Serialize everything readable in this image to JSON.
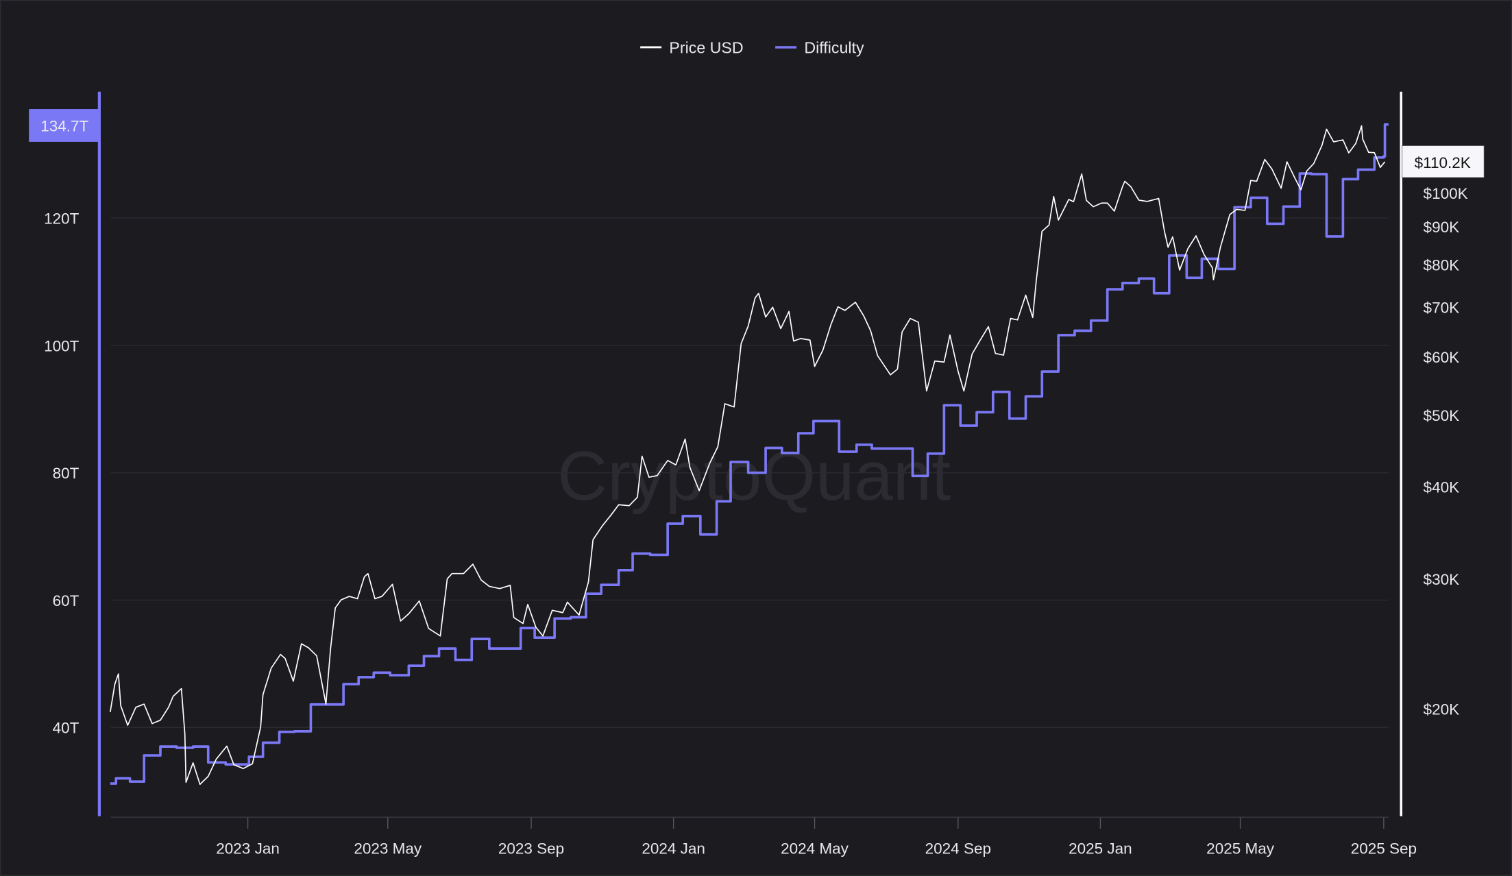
{
  "watermark": "CryptoQuant",
  "colors": {
    "background": "#1b1b20",
    "price": "#ffffff",
    "difficulty": "#7b78f5",
    "grid": "#2a2a30"
  },
  "chart_data": {
    "type": "line",
    "title": "",
    "legend_position": "top-center",
    "grid": true,
    "x_axis": {
      "type": "date",
      "range": [
        "2022-09-05",
        "2025-09-02"
      ],
      "tick_labels": [
        "2023 Jan",
        "2023 May",
        "2023 Sep",
        "2024 Jan",
        "2024 May",
        "2024 Sep",
        "2025 Jan",
        "2025 May",
        "2025 Sep"
      ],
      "ticks": [
        "2023-01-01",
        "2023-05-01",
        "2023-09-01",
        "2024-01-01",
        "2024-05-01",
        "2024-09-01",
        "2025-01-01",
        "2025-05-01",
        "2025-09-01"
      ]
    },
    "left_axis": {
      "series": "Difficulty",
      "scale": "linear",
      "unit": "T",
      "range": [
        28,
        142
      ],
      "tick_labels": [
        "40T",
        "60T",
        "80T",
        "100T",
        "120T"
      ],
      "ticks": [
        40,
        60,
        80,
        100,
        120
      ],
      "current_label": "134.7T"
    },
    "right_axis": {
      "series": "Price USD",
      "scale": "log",
      "range": [
        15000,
        135000
      ],
      "tick_labels": [
        "$20K",
        "$30K",
        "$40K",
        "$50K",
        "$60K",
        "$70K",
        "$80K",
        "$90K",
        "$100K"
      ],
      "ticks": [
        20000,
        30000,
        40000,
        50000,
        60000,
        70000,
        80000,
        90000,
        100000
      ],
      "current_label": "$110.2K"
    },
    "series": [
      {
        "name": "Price USD",
        "axis": "right",
        "style": "line",
        "color": "#ffffff",
        "points": [
          [
            "2022-09-05",
            19800
          ],
          [
            "2022-09-09",
            21600
          ],
          [
            "2022-09-12",
            22300
          ],
          [
            "2022-09-14",
            20200
          ],
          [
            "2022-09-20",
            19000
          ],
          [
            "2022-09-27",
            20100
          ],
          [
            "2022-10-04",
            20300
          ],
          [
            "2022-10-11",
            19100
          ],
          [
            "2022-10-18",
            19300
          ],
          [
            "2022-10-25",
            20100
          ],
          [
            "2022-10-29",
            20800
          ],
          [
            "2022-11-05",
            21300
          ],
          [
            "2022-11-08",
            18500
          ],
          [
            "2022-11-09",
            15900
          ],
          [
            "2022-11-15",
            16900
          ],
          [
            "2022-11-21",
            15800
          ],
          [
            "2022-11-28",
            16200
          ],
          [
            "2022-12-05",
            17100
          ],
          [
            "2022-12-14",
            17800
          ],
          [
            "2022-12-20",
            16800
          ],
          [
            "2022-12-28",
            16600
          ],
          [
            "2023-01-05",
            16850
          ],
          [
            "2023-01-12",
            18900
          ],
          [
            "2023-01-14",
            20900
          ],
          [
            "2023-01-21",
            22700
          ],
          [
            "2023-01-29",
            23700
          ],
          [
            "2023-02-02",
            23400
          ],
          [
            "2023-02-09",
            21800
          ],
          [
            "2023-02-16",
            24500
          ],
          [
            "2023-02-22",
            24200
          ],
          [
            "2023-03-01",
            23600
          ],
          [
            "2023-03-09",
            20300
          ],
          [
            "2023-03-13",
            24200
          ],
          [
            "2023-03-17",
            27400
          ],
          [
            "2023-03-22",
            28100
          ],
          [
            "2023-03-29",
            28400
          ],
          [
            "2023-04-05",
            28200
          ],
          [
            "2023-04-11",
            30200
          ],
          [
            "2023-04-14",
            30500
          ],
          [
            "2023-04-20",
            28200
          ],
          [
            "2023-04-26",
            28400
          ],
          [
            "2023-05-05",
            29500
          ],
          [
            "2023-05-12",
            26300
          ],
          [
            "2023-05-19",
            26900
          ],
          [
            "2023-05-28",
            28000
          ],
          [
            "2023-06-05",
            25700
          ],
          [
            "2023-06-15",
            25100
          ],
          [
            "2023-06-21",
            30000
          ],
          [
            "2023-06-25",
            30500
          ],
          [
            "2023-07-05",
            30500
          ],
          [
            "2023-07-13",
            31400
          ],
          [
            "2023-07-20",
            29900
          ],
          [
            "2023-07-27",
            29300
          ],
          [
            "2023-08-05",
            29100
          ],
          [
            "2023-08-14",
            29400
          ],
          [
            "2023-08-17",
            26600
          ],
          [
            "2023-08-25",
            26100
          ],
          [
            "2023-08-29",
            27700
          ],
          [
            "2023-09-05",
            25800
          ],
          [
            "2023-09-11",
            25100
          ],
          [
            "2023-09-19",
            27200
          ],
          [
            "2023-09-28",
            27000
          ],
          [
            "2023-10-02",
            27900
          ],
          [
            "2023-10-12",
            26800
          ],
          [
            "2023-10-20",
            29700
          ],
          [
            "2023-10-24",
            33900
          ],
          [
            "2023-11-01",
            35400
          ],
          [
            "2023-11-09",
            36700
          ],
          [
            "2023-11-15",
            37800
          ],
          [
            "2023-11-24",
            37700
          ],
          [
            "2023-12-01",
            38700
          ],
          [
            "2023-12-05",
            44000
          ],
          [
            "2023-12-11",
            41200
          ],
          [
            "2023-12-18",
            41400
          ],
          [
            "2023-12-27",
            43400
          ],
          [
            "2024-01-03",
            42800
          ],
          [
            "2024-01-11",
            46400
          ],
          [
            "2024-01-15",
            42500
          ],
          [
            "2024-01-23",
            39500
          ],
          [
            "2024-02-01",
            43000
          ],
          [
            "2024-02-08",
            45300
          ],
          [
            "2024-02-14",
            51800
          ],
          [
            "2024-02-22",
            51300
          ],
          [
            "2024-02-28",
            62500
          ],
          [
            "2024-03-05",
            66000
          ],
          [
            "2024-03-11",
            72100
          ],
          [
            "2024-03-14",
            73100
          ],
          [
            "2024-03-20",
            67900
          ],
          [
            "2024-03-26",
            70000
          ],
          [
            "2024-04-02",
            65500
          ],
          [
            "2024-04-09",
            69100
          ],
          [
            "2024-04-13",
            63000
          ],
          [
            "2024-04-19",
            63500
          ],
          [
            "2024-04-27",
            63200
          ],
          [
            "2024-05-01",
            58200
          ],
          [
            "2024-05-08",
            61200
          ],
          [
            "2024-05-15",
            66300
          ],
          [
            "2024-05-21",
            70100
          ],
          [
            "2024-05-27",
            69300
          ],
          [
            "2024-06-05",
            71100
          ],
          [
            "2024-06-12",
            68200
          ],
          [
            "2024-06-18",
            65100
          ],
          [
            "2024-06-24",
            60200
          ],
          [
            "2024-07-05",
            56700
          ],
          [
            "2024-07-11",
            57700
          ],
          [
            "2024-07-15",
            64800
          ],
          [
            "2024-07-22",
            67600
          ],
          [
            "2024-07-29",
            66800
          ],
          [
            "2024-08-05",
            53900
          ],
          [
            "2024-08-12",
            59200
          ],
          [
            "2024-08-20",
            59000
          ],
          [
            "2024-08-25",
            64200
          ],
          [
            "2024-09-01",
            57300
          ],
          [
            "2024-09-06",
            53900
          ],
          [
            "2024-09-13",
            60500
          ],
          [
            "2024-09-20",
            63200
          ],
          [
            "2024-09-27",
            65900
          ],
          [
            "2024-10-03",
            60600
          ],
          [
            "2024-10-10",
            60300
          ],
          [
            "2024-10-16",
            67600
          ],
          [
            "2024-10-22",
            67300
          ],
          [
            "2024-10-29",
            72700
          ],
          [
            "2024-11-04",
            67800
          ],
          [
            "2024-11-07",
            76000
          ],
          [
            "2024-11-12",
            88700
          ],
          [
            "2024-11-18",
            90500
          ],
          [
            "2024-11-22",
            98900
          ],
          [
            "2024-11-26",
            91900
          ],
          [
            "2024-12-05",
            98000
          ],
          [
            "2024-12-09",
            97300
          ],
          [
            "2024-12-16",
            106100
          ],
          [
            "2024-12-20",
            97700
          ],
          [
            "2024-12-26",
            95800
          ],
          [
            "2025-01-02",
            96900
          ],
          [
            "2025-01-07",
            96900
          ],
          [
            "2025-01-13",
            94500
          ],
          [
            "2025-01-20",
            102000
          ],
          [
            "2025-01-22",
            103700
          ],
          [
            "2025-01-27",
            102000
          ],
          [
            "2025-02-03",
            97800
          ],
          [
            "2025-02-10",
            97400
          ],
          [
            "2025-02-20",
            98300
          ],
          [
            "2025-02-25",
            88700
          ],
          [
            "2025-02-28",
            84400
          ],
          [
            "2025-03-04",
            87200
          ],
          [
            "2025-03-10",
            78600
          ],
          [
            "2025-03-17",
            84000
          ],
          [
            "2025-03-24",
            87500
          ],
          [
            "2025-03-31",
            82500
          ],
          [
            "2025-04-07",
            79200
          ],
          [
            "2025-04-08",
            76300
          ],
          [
            "2025-04-14",
            84500
          ],
          [
            "2025-04-22",
            93500
          ],
          [
            "2025-04-28",
            95000
          ],
          [
            "2025-05-05",
            94700
          ],
          [
            "2025-05-10",
            104000
          ],
          [
            "2025-05-15",
            103700
          ],
          [
            "2025-05-22",
            111000
          ],
          [
            "2025-05-28",
            107800
          ],
          [
            "2025-06-05",
            101500
          ],
          [
            "2025-06-10",
            110200
          ],
          [
            "2025-06-17",
            104600
          ],
          [
            "2025-06-22",
            101000
          ],
          [
            "2025-06-27",
            107100
          ],
          [
            "2025-07-03",
            109600
          ],
          [
            "2025-07-10",
            116000
          ],
          [
            "2025-07-14",
            122000
          ],
          [
            "2025-07-20",
            117300
          ],
          [
            "2025-07-28",
            118000
          ],
          [
            "2025-08-02",
            113300
          ],
          [
            "2025-08-08",
            116700
          ],
          [
            "2025-08-13",
            123300
          ],
          [
            "2025-08-14",
            118300
          ],
          [
            "2025-08-19",
            113500
          ],
          [
            "2025-08-24",
            113400
          ],
          [
            "2025-08-29",
            108300
          ],
          [
            "2025-09-02",
            110200
          ]
        ]
      },
      {
        "name": "Difficulty",
        "axis": "left",
        "style": "step",
        "color": "#7b78f5",
        "points": [
          [
            "2022-09-05",
            31.2
          ],
          [
            "2022-09-10",
            32.0
          ],
          [
            "2022-09-22",
            31.5
          ],
          [
            "2022-10-04",
            35.6
          ],
          [
            "2022-10-18",
            37.0
          ],
          [
            "2022-11-01",
            36.8
          ],
          [
            "2022-11-15",
            37.0
          ],
          [
            "2022-11-28",
            34.5
          ],
          [
            "2022-12-13",
            34.2
          ],
          [
            "2023-01-02",
            35.4
          ],
          [
            "2023-01-14",
            37.6
          ],
          [
            "2023-01-28",
            39.3
          ],
          [
            "2023-02-10",
            39.4
          ],
          [
            "2023-02-24",
            43.6
          ],
          [
            "2023-03-12",
            43.6
          ],
          [
            "2023-03-24",
            46.8
          ],
          [
            "2023-04-06",
            47.9
          ],
          [
            "2023-04-19",
            48.6
          ],
          [
            "2023-05-03",
            48.2
          ],
          [
            "2023-05-19",
            49.7
          ],
          [
            "2023-06-01",
            51.2
          ],
          [
            "2023-06-14",
            52.4
          ],
          [
            "2023-06-28",
            50.6
          ],
          [
            "2023-07-12",
            53.9
          ],
          [
            "2023-07-27",
            52.4
          ],
          [
            "2023-08-23",
            55.6
          ],
          [
            "2023-09-04",
            54.1
          ],
          [
            "2023-09-21",
            57.1
          ],
          [
            "2023-10-05",
            57.3
          ],
          [
            "2023-10-18",
            61.0
          ],
          [
            "2023-10-31",
            62.4
          ],
          [
            "2023-11-15",
            64.7
          ],
          [
            "2023-11-27",
            67.3
          ],
          [
            "2023-12-12",
            67.1
          ],
          [
            "2023-12-27",
            72.0
          ],
          [
            "2024-01-09",
            73.2
          ],
          [
            "2024-01-24",
            70.3
          ],
          [
            "2024-02-07",
            75.5
          ],
          [
            "2024-02-19",
            81.7
          ],
          [
            "2024-03-05",
            80.0
          ],
          [
            "2024-03-20",
            83.9
          ],
          [
            "2024-04-03",
            83.1
          ],
          [
            "2024-04-17",
            86.2
          ],
          [
            "2024-04-30",
            88.1
          ],
          [
            "2024-05-22",
            83.3
          ],
          [
            "2024-06-06",
            84.4
          ],
          [
            "2024-06-19",
            83.8
          ],
          [
            "2024-07-24",
            79.5
          ],
          [
            "2024-08-06",
            83.0
          ],
          [
            "2024-08-20",
            90.6
          ],
          [
            "2024-09-03",
            87.4
          ],
          [
            "2024-09-17",
            89.5
          ],
          [
            "2024-10-01",
            92.7
          ],
          [
            "2024-10-15",
            88.5
          ],
          [
            "2024-10-29",
            92.0
          ],
          [
            "2024-11-12",
            95.9
          ],
          [
            "2024-11-26",
            101.6
          ],
          [
            "2024-12-10",
            102.3
          ],
          [
            "2024-12-24",
            103.9
          ],
          [
            "2025-01-07",
            108.8
          ],
          [
            "2025-01-20",
            109.8
          ],
          [
            "2025-02-03",
            110.5
          ],
          [
            "2025-02-16",
            108.2
          ],
          [
            "2025-03-01",
            114.1
          ],
          [
            "2025-03-16",
            110.6
          ],
          [
            "2025-03-29",
            113.6
          ],
          [
            "2025-04-12",
            112.0
          ],
          [
            "2025-04-26",
            121.7
          ],
          [
            "2025-05-10",
            123.2
          ],
          [
            "2025-05-24",
            119.1
          ],
          [
            "2025-06-07",
            121.8
          ],
          [
            "2025-06-21",
            127.0
          ],
          [
            "2025-07-01",
            126.9
          ],
          [
            "2025-07-14",
            117.1
          ],
          [
            "2025-07-28",
            126.1
          ],
          [
            "2025-08-10",
            127.6
          ],
          [
            "2025-08-24",
            129.5
          ],
          [
            "2025-09-01",
            129.7
          ],
          [
            "2025-09-02",
            134.7
          ]
        ]
      }
    ]
  }
}
